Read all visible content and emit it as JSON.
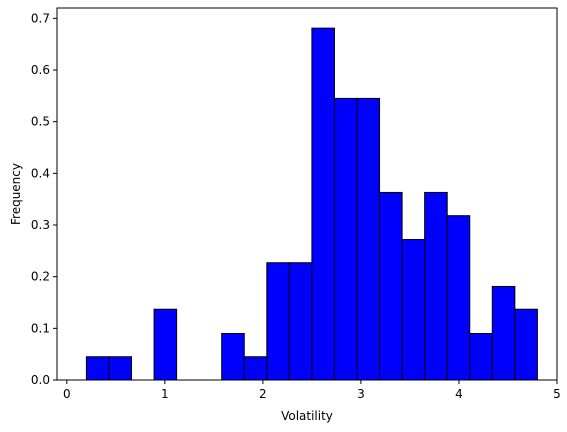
{
  "chart_data": {
    "type": "bar",
    "title": "",
    "xlabel": "Volatility",
    "ylabel": "Frequency",
    "xlim": [
      -0.1,
      5.0
    ],
    "ylim": [
      0,
      0.72
    ],
    "xticks": [
      0,
      1,
      2,
      3,
      4,
      5
    ],
    "yticks": [
      0.0,
      0.1,
      0.2,
      0.3,
      0.4,
      0.5,
      0.6,
      0.7
    ],
    "xtick_labels": [
      "0",
      "1",
      "2",
      "3",
      "4",
      "5"
    ],
    "ytick_labels": [
      "0.0",
      "0.1",
      "0.2",
      "0.3",
      "0.4",
      "0.5",
      "0.6",
      "0.7"
    ],
    "bin_edges": [
      0.2,
      0.43,
      0.66,
      0.89,
      1.12,
      1.35,
      1.58,
      1.81,
      2.04,
      2.27,
      2.5,
      2.73,
      2.96,
      3.19,
      3.42,
      3.65,
      3.88,
      4.11,
      4.34,
      4.57,
      4.8
    ],
    "values": [
      0.045,
      0.045,
      0.0,
      0.137,
      0.0,
      0.0,
      0.09,
      0.045,
      0.227,
      0.227,
      0.681,
      0.545,
      0.545,
      0.363,
      0.272,
      0.363,
      0.318,
      0.09,
      0.181,
      0.137
    ],
    "bar_color": "#0000ff",
    "edge_color": "#000000",
    "grid": false,
    "legend": false
  }
}
